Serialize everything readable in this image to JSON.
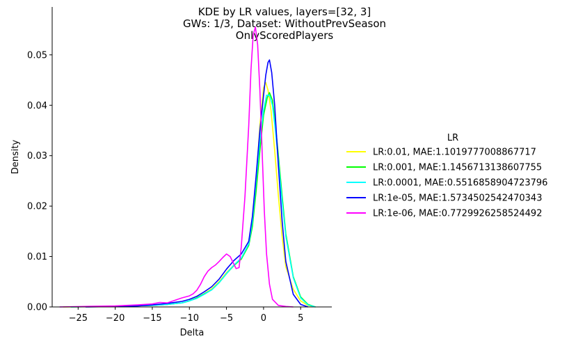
{
  "chart_data": {
    "type": "line",
    "title_lines": [
      "KDE by LR values, layers=[32, 3]",
      "GWs: 1/3, Dataset: WithoutPrevSeason",
      "OnlyScoredPlayers"
    ],
    "xlabel": "Delta",
    "ylabel": "Density",
    "xlim": [
      -28.5,
      9.2
    ],
    "ylim": [
      0,
      0.0595
    ],
    "xticks": [
      -25,
      -20,
      -15,
      -10,
      -5,
      0,
      5
    ],
    "xtick_labels": [
      "−25",
      "−20",
      "−15",
      "−10",
      "−5",
      "0",
      "5"
    ],
    "yticks": [
      0.0,
      0.01,
      0.02,
      0.03,
      0.04,
      0.05
    ],
    "ytick_labels": [
      "0.00",
      "0.01",
      "0.02",
      "0.03",
      "0.04",
      "0.05"
    ],
    "grid": false,
    "legend": {
      "title": "LR",
      "placement": "right"
    },
    "series": [
      {
        "name": "LR:0.01, MAE:1.1019777008867717",
        "color": "#ffff00",
        "x": [
          -27,
          -22,
          -18,
          -15,
          -13,
          -11,
          -10,
          -9,
          -8,
          -7,
          -6,
          -5,
          -4,
          -3,
          -2,
          -1.5,
          -1,
          -0.5,
          0,
          0.3,
          0.6,
          1,
          1.5,
          2,
          2.5,
          3,
          4,
          5,
          6,
          7
        ],
        "y": [
          0.0,
          0.0001,
          0.0002,
          0.0003,
          0.0005,
          0.0008,
          0.0012,
          0.0018,
          0.0026,
          0.0036,
          0.005,
          0.0068,
          0.0083,
          0.0095,
          0.0125,
          0.017,
          0.025,
          0.036,
          0.0435,
          0.0445,
          0.043,
          0.039,
          0.031,
          0.022,
          0.014,
          0.008,
          0.0035,
          0.0012,
          0.0003,
          0.0
        ]
      },
      {
        "name": "LR:0.001, MAE:1.1456713138607755",
        "color": "#00ff00",
        "x": [
          -26,
          -22,
          -18,
          -15,
          -13,
          -11,
          -10,
          -9,
          -8,
          -7,
          -6,
          -5,
          -4,
          -3,
          -2,
          -1.5,
          -1,
          -0.5,
          0,
          0.5,
          0.8,
          1.2,
          1.6,
          2,
          2.5,
          3,
          4,
          5,
          6,
          7
        ],
        "y": [
          0.0,
          0.0001,
          0.0002,
          0.0003,
          0.0005,
          0.0008,
          0.0012,
          0.0018,
          0.0026,
          0.0034,
          0.0048,
          0.0066,
          0.0082,
          0.0095,
          0.0122,
          0.016,
          0.023,
          0.031,
          0.038,
          0.0415,
          0.0425,
          0.041,
          0.036,
          0.03,
          0.022,
          0.0145,
          0.006,
          0.002,
          0.0005,
          0.0
        ]
      },
      {
        "name": "LR:0.0001, MAE:0.5516858904723796",
        "color": "#00ffff",
        "x": [
          -26,
          -22,
          -18,
          -15,
          -13,
          -11,
          -10,
          -9,
          -8,
          -7,
          -6,
          -5,
          -4,
          -3,
          -2,
          -1.5,
          -1,
          -0.5,
          0,
          0.4,
          0.8,
          1.2,
          1.6,
          2,
          2.5,
          3,
          4,
          5,
          6,
          7
        ],
        "y": [
          0.0,
          0.0001,
          0.0002,
          0.0003,
          0.0005,
          0.0008,
          0.0012,
          0.0017,
          0.0025,
          0.0034,
          0.0048,
          0.0066,
          0.0083,
          0.0097,
          0.0125,
          0.017,
          0.025,
          0.033,
          0.039,
          0.042,
          0.042,
          0.04,
          0.035,
          0.029,
          0.021,
          0.014,
          0.0058,
          0.0018,
          0.0004,
          0.0
        ]
      },
      {
        "name": "LR:1e-05, MAE:1.5734502542470343",
        "color": "#0000ff",
        "x": [
          -24,
          -20,
          -17,
          -15,
          -13,
          -11,
          -10,
          -9,
          -8,
          -7,
          -6,
          -5,
          -4,
          -3,
          -2,
          -1.5,
          -1,
          -0.5,
          0,
          0.3,
          0.6,
          0.8,
          1.1,
          1.5,
          2,
          2.5,
          3,
          4,
          5,
          6
        ],
        "y": [
          0.0,
          0.0001,
          0.0002,
          0.0004,
          0.0007,
          0.0011,
          0.0015,
          0.0021,
          0.003,
          0.004,
          0.0055,
          0.0075,
          0.0092,
          0.0105,
          0.013,
          0.018,
          0.026,
          0.035,
          0.042,
          0.046,
          0.0485,
          0.049,
          0.0465,
          0.04,
          0.028,
          0.017,
          0.009,
          0.0025,
          0.0005,
          0.0
        ]
      },
      {
        "name": "LR:1e-06, MAE:0.7729926258524492",
        "color": "#ff00ff",
        "x": [
          -27.5,
          -24,
          -20,
          -17,
          -15,
          -14,
          -13,
          -12,
          -11,
          -10,
          -9.5,
          -9,
          -8.5,
          -8,
          -7.5,
          -7,
          -6.5,
          -6,
          -5.5,
          -5,
          -4.5,
          -4,
          -3.7,
          -3.3,
          -3,
          -2.5,
          -2,
          -1.7,
          -1.4,
          -1.1,
          -0.8,
          -0.5,
          -0.2,
          0.1,
          0.4,
          0.8,
          1.2,
          2,
          3,
          4
        ],
        "y": [
          0.0,
          0.0001,
          0.0002,
          0.0004,
          0.0006,
          0.0009,
          0.0008,
          0.0013,
          0.0018,
          0.0022,
          0.0026,
          0.0033,
          0.0045,
          0.006,
          0.0071,
          0.0078,
          0.0083,
          0.009,
          0.0098,
          0.0105,
          0.01,
          0.0085,
          0.0076,
          0.0078,
          0.012,
          0.022,
          0.036,
          0.047,
          0.054,
          0.0555,
          0.052,
          0.043,
          0.031,
          0.019,
          0.0105,
          0.0045,
          0.0015,
          0.0003,
          0.0001,
          0.0
        ]
      }
    ]
  }
}
